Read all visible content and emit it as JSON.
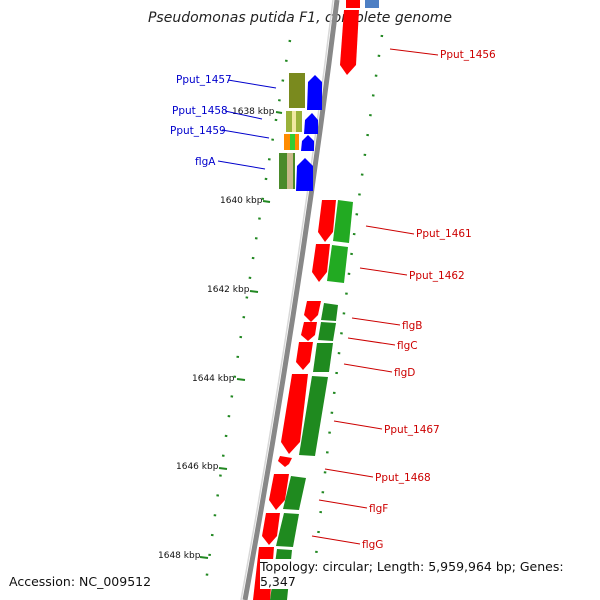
{
  "title": "Pseudomonas putida F1, complete genome",
  "footer": {
    "accession": "Accession: NC_009512",
    "topology": "Topology: circular; Length: 5,959,964 bp; Genes: 5,347"
  },
  "colors": {
    "forward_gene_label": "#0000cc",
    "reverse_gene_label": "#cc0000",
    "backbone": "#808080",
    "cds_reverse": "#ff0000",
    "cds_forward": "#0000ff",
    "tick": "#006600"
  },
  "scale": [
    {
      "label": "1638 kbp"
    },
    {
      "label": "1640 kbp"
    },
    {
      "label": "1642 kbp"
    },
    {
      "label": "1644 kbp"
    },
    {
      "label": "1646 kbp"
    },
    {
      "label": "1648 kbp"
    }
  ],
  "genes_forward": [
    {
      "name": "Pput_1457"
    },
    {
      "name": "Pput_1458"
    },
    {
      "name": "Pput_1459"
    },
    {
      "name": "flgA"
    }
  ],
  "genes_reverse": [
    {
      "name": "Pput_1456"
    },
    {
      "name": "Pput_1461"
    },
    {
      "name": "Pput_1462"
    },
    {
      "name": "flgB"
    },
    {
      "name": "flgC"
    },
    {
      "name": "flgD"
    },
    {
      "name": "Pput_1467"
    },
    {
      "name": "Pput_1468"
    },
    {
      "name": "flgF"
    },
    {
      "name": "flgG"
    }
  ]
}
